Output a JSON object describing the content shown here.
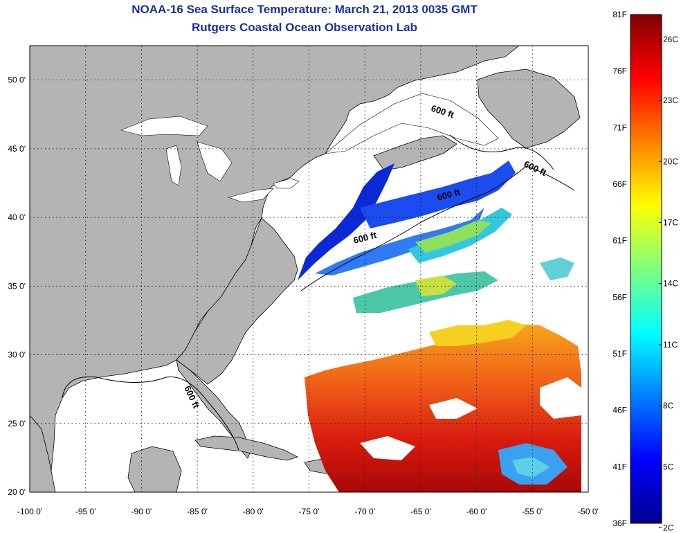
{
  "header": {
    "title": "NOAA-16 Sea Surface Temperature:  March 21, 2013 0035 GMT",
    "subtitle": "Rutgers Coastal Ocean Observation Lab"
  },
  "map": {
    "lon_labels": [
      "-100 0'",
      "-95 0'",
      "-90 0'",
      "-85 0'",
      "-80 0'",
      "-75 0'",
      "-70 0'",
      "-65 0'",
      "-60 0'",
      "-55 0'",
      "-50 0'"
    ],
    "lat_labels": [
      "50 0'",
      "45 0'",
      "40 0'",
      "35 0'",
      "30 0'",
      "25 0'",
      "20 0'"
    ],
    "lon_range": [
      -100,
      -50
    ],
    "lat_range": [
      20,
      52.5
    ],
    "grid": true,
    "contour_label": "600 ft",
    "land_color": "#b4b4b4",
    "no_data_color": "#ffffff"
  },
  "colorbar": {
    "fahrenheit_labels": [
      "81F",
      "76F",
      "71F",
      "66F",
      "61F",
      "56F",
      "51F",
      "46F",
      "41F",
      "36F"
    ],
    "celsius_labels": [
      "26C",
      "23C",
      "20C",
      "17C",
      "14C",
      "11C",
      "8C",
      "5C",
      "2C"
    ],
    "colormap": "jet"
  }
}
